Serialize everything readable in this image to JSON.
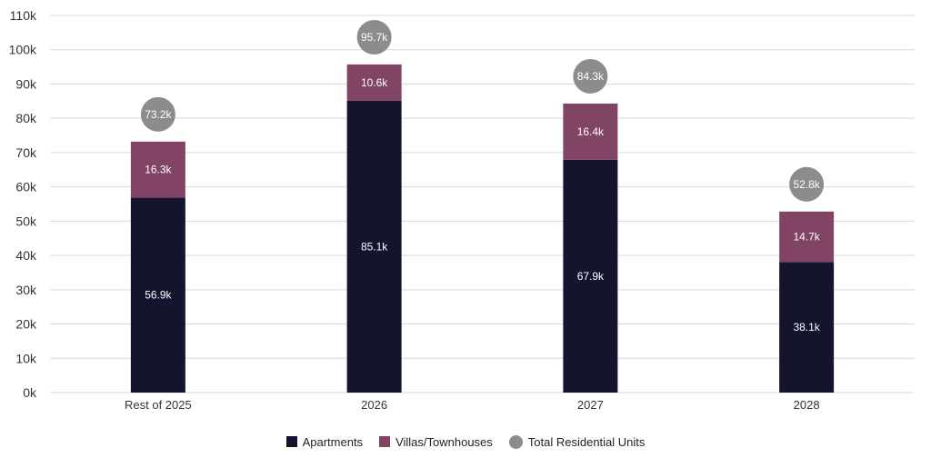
{
  "chart_data": {
    "type": "bar",
    "stacked": true,
    "categories": [
      "Rest of 2025",
      "2026",
      "2027",
      "2028"
    ],
    "series": [
      {
        "name": "Apartments",
        "values": [
          56.9,
          85.1,
          67.9,
          38.1
        ],
        "labels": [
          "56.9k",
          "85.1k",
          "67.9k",
          "38.1k"
        ],
        "color": "#14142f"
      },
      {
        "name": "Villas/Townhouses",
        "values": [
          16.3,
          10.6,
          16.4,
          14.7
        ],
        "labels": [
          "16.3k",
          "10.6k",
          "16.4k",
          "14.7k"
        ],
        "color": "#824465"
      }
    ],
    "totals": {
      "name": "Total Residential Units",
      "values": [
        73.2,
        95.7,
        84.3,
        52.8
      ],
      "labels": [
        "73.2k",
        "95.7k",
        "84.3k",
        "52.8k"
      ],
      "color": "#8c8c8c"
    },
    "y_unit": "thousands",
    "ylim": [
      0,
      110
    ],
    "y_ticks": [
      0,
      10,
      20,
      30,
      40,
      50,
      60,
      70,
      80,
      90,
      100,
      110
    ],
    "y_tick_labels": [
      "0k",
      "10k",
      "20k",
      "30k",
      "40k",
      "50k",
      "60k",
      "70k",
      "80k",
      "90k",
      "100k",
      "110k"
    ],
    "grid": true,
    "legend_position": "bottom",
    "title": "",
    "xlabel": "",
    "ylabel": ""
  }
}
